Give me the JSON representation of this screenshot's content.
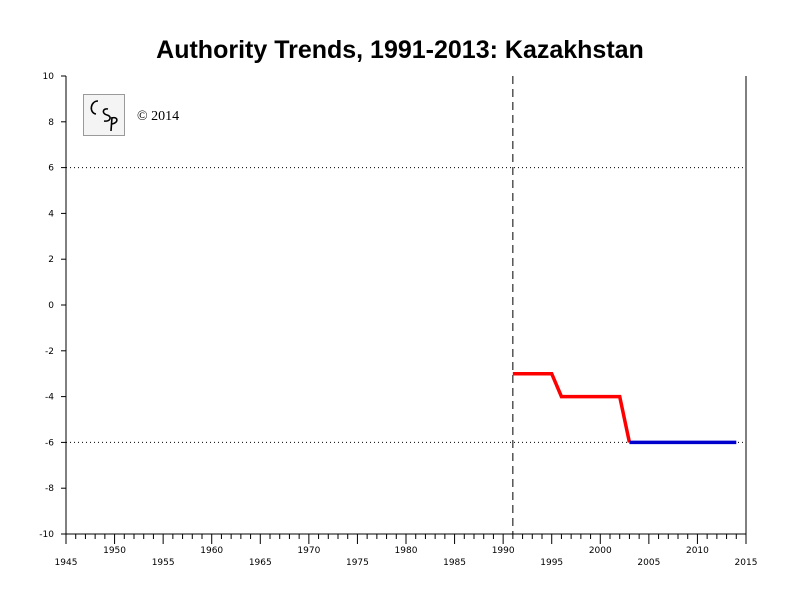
{
  "chart_data": {
    "type": "line",
    "title": "Authority Trends, 1991-2013: Kazakhstan",
    "xlim": [
      1945,
      2015
    ],
    "ylim": [
      -10,
      10
    ],
    "x_ticks_major": [
      1945,
      1950,
      1955,
      1960,
      1965,
      1970,
      1975,
      1980,
      1985,
      1990,
      1995,
      2000,
      2005,
      2010,
      2015
    ],
    "y_ticks": [
      10,
      8,
      6,
      4,
      2,
      0,
      -2,
      -4,
      -6,
      -8,
      -10
    ],
    "reference_lines_y": [
      6,
      -6
    ],
    "reference_line_x": 1991,
    "series": [
      {
        "color": "#ff0000",
        "points": [
          [
            1991,
            -3
          ],
          [
            1995,
            -3
          ],
          [
            1996,
            -4
          ],
          [
            2002,
            -4
          ],
          [
            2003,
            -6
          ]
        ]
      },
      {
        "color": "#0000cc",
        "points": [
          [
            2003,
            -6
          ],
          [
            2014,
            -6
          ]
        ]
      }
    ]
  },
  "watermark": {
    "logo_text": "CSP",
    "copyright": "© 2014"
  }
}
